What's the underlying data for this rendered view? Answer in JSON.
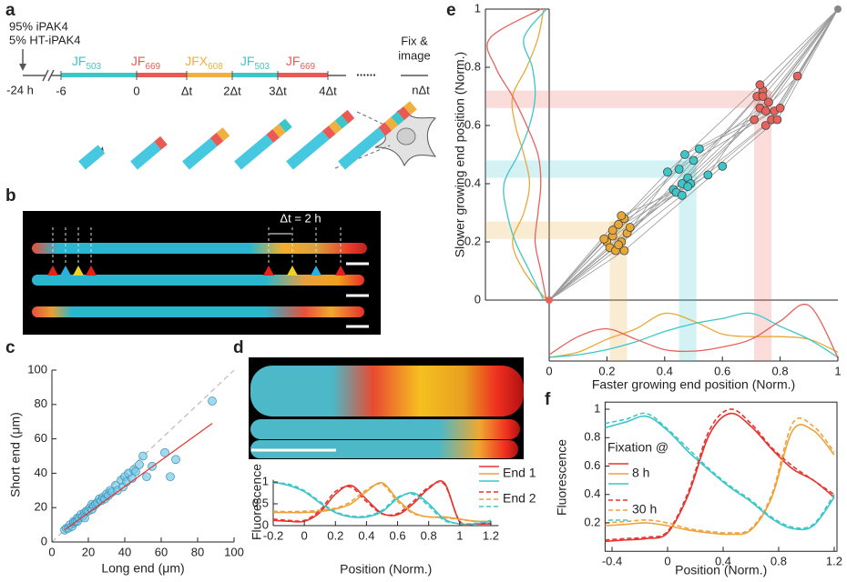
{
  "panel_labels": [
    "a",
    "b",
    "c",
    "d",
    "e",
    "f"
  ],
  "timeline": {
    "conditions": [
      "95% iPAK4",
      "5% HT-iPAK4"
    ],
    "start": "-24 h",
    "dyes": [
      {
        "name": "JF",
        "sub": "503"
      },
      {
        "name": "JF",
        "sub": "669"
      },
      {
        "name": "JFX",
        "sub": "608"
      },
      {
        "name": "JF",
        "sub": "503"
      },
      {
        "name": "JF",
        "sub": "669"
      }
    ],
    "times": [
      "-6",
      "0",
      "Δt",
      "2Δt",
      "3Δt",
      "4Δt"
    ],
    "ellipsis": "......",
    "end_time": "nΔt",
    "end_label": [
      "Fix &",
      "image"
    ]
  },
  "image_b": {
    "annotation": "Δt = 2 h"
  },
  "chart_data": [
    {
      "type": "scatter",
      "x_label": "Long end (μm)",
      "y_label": "Short end (μm)",
      "xlim": [
        0,
        100
      ],
      "ylim": [
        0,
        100
      ],
      "xticks": [
        0,
        20,
        40,
        60,
        80,
        100
      ],
      "yticks": [
        0,
        20,
        40,
        60,
        80,
        100
      ],
      "color": "#6ec6e8",
      "x": [
        7,
        8,
        9,
        10,
        11,
        12,
        12,
        13,
        14,
        14,
        15,
        16,
        17,
        18,
        18,
        19,
        20,
        21,
        22,
        22,
        23,
        24,
        25,
        26,
        27,
        28,
        29,
        30,
        31,
        32,
        33,
        35,
        36,
        38,
        39,
        40,
        41,
        42,
        44,
        45,
        46,
        48,
        50,
        52,
        55,
        62,
        65,
        68,
        88
      ],
      "values": [
        7,
        8,
        8,
        10,
        9,
        11,
        12,
        12,
        14,
        12,
        14,
        16,
        15,
        17,
        14,
        18,
        18,
        20,
        19,
        22,
        21,
        22,
        23,
        25,
        24,
        26,
        25,
        28,
        27,
        30,
        29,
        33,
        30,
        36,
        32,
        38,
        35,
        40,
        37,
        42,
        41,
        45,
        50,
        38,
        44,
        52,
        38,
        48,
        82
      ],
      "fit_line": {
        "color": "#e8332e",
        "x": [
          7,
          88
        ],
        "y": [
          7,
          69
        ]
      },
      "identity_line": {
        "color": "#bbbbbb",
        "x": [
          0,
          100
        ],
        "y": [
          0,
          100
        ]
      }
    },
    {
      "type": "line",
      "x_label": "Position (Norm.)",
      "y_label": "Fluorescence",
      "xlim": [
        -0.2,
        1.25
      ],
      "ylim": [
        0,
        1.05
      ],
      "xticks": [
        -0.2,
        0,
        0.2,
        0.4,
        0.6,
        0.8,
        1,
        1.2
      ],
      "yticks": [
        0,
        0.5,
        1
      ],
      "legend": "upper right",
      "x": [
        -0.2,
        -0.1,
        0,
        0.1,
        0.2,
        0.3,
        0.4,
        0.5,
        0.6,
        0.7,
        0.8,
        0.9,
        1,
        1.1,
        1.2
      ],
      "groups": [
        {
          "name": "End 1",
          "dashed": false,
          "series": [
            {
              "color": "#e8332e",
              "values": [
                0.12,
                0.1,
                0.1,
                0.3,
                0.72,
                0.92,
                0.6,
                0.28,
                0.25,
                0.5,
                0.85,
                0.98,
                0.08,
                0.04,
                0.04
              ]
            },
            {
              "color": "#eea23a",
              "values": [
                0.3,
                0.3,
                0.3,
                0.32,
                0.38,
                0.5,
                0.78,
                0.98,
                0.6,
                0.3,
                0.2,
                0.2,
                0.15,
                0.1,
                0.1
              ]
            },
            {
              "color": "#3cc6c8",
              "values": [
                1,
                0.92,
                0.78,
                0.52,
                0.3,
                0.2,
                0.2,
                0.32,
                0.62,
                0.75,
                0.5,
                0.15,
                0.04,
                0.04,
                0.1
              ]
            }
          ]
        },
        {
          "name": "End 2",
          "dashed": true,
          "series": [
            {
              "color": "#e8332e",
              "values": [
                0.15,
                0.12,
                0.12,
                0.35,
                0.78,
                0.88,
                0.55,
                0.27,
                0.28,
                0.55,
                0.88,
                0.95,
                0.1,
                0.05,
                0.05
              ]
            },
            {
              "color": "#eea23a",
              "values": [
                0.33,
                0.32,
                0.33,
                0.35,
                0.4,
                0.55,
                0.82,
                0.95,
                0.55,
                0.28,
                0.2,
                0.18,
                0.14,
                0.1,
                0.1
              ]
            },
            {
              "color": "#3cc6c8",
              "values": [
                0.98,
                0.95,
                0.8,
                0.55,
                0.32,
                0.22,
                0.22,
                0.35,
                0.65,
                0.72,
                0.45,
                0.12,
                0.05,
                0.05,
                0.12
              ]
            }
          ]
        }
      ]
    },
    {
      "type": "scatter",
      "x_label": "Faster growing end position (Norm.)",
      "y_label": "Slower growing end position (Norm.)",
      "xlim": [
        0,
        1
      ],
      "ylim": [
        0,
        1
      ],
      "xticks": [
        0,
        0.2,
        0.4,
        0.6,
        0.8,
        1
      ],
      "yticks": [
        0,
        0.2,
        0.4,
        0.6,
        0.8,
        1
      ],
      "line_color": "#999999",
      "marginal_positions": [
        0,
        0.1,
        0.2,
        0.3,
        0.4,
        0.5,
        0.6,
        0.7,
        0.8,
        0.9,
        1
      ],
      "series": [
        {
          "color": "#e8a838",
          "x": [
            0.2,
            0.22,
            0.24,
            0.25,
            0.27,
            0.21,
            0.23,
            0.26,
            0.28,
            0.19,
            0.24,
            0.22,
            0.26,
            0.25
          ],
          "values": [
            0.2,
            0.22,
            0.26,
            0.2,
            0.23,
            0.18,
            0.17,
            0.28,
            0.25,
            0.21,
            0.19,
            0.24,
            0.17,
            0.29
          ],
          "band_x": [
            0.21,
            0.27
          ],
          "band_y": [
            0.21,
            0.27
          ],
          "x_density": [
            0,
            0.1,
            0.35,
            0.55,
            0.85,
            0.7,
            0.45,
            0.4,
            0.4,
            0.35,
            0.1
          ],
          "y_density": [
            0,
            0.4,
            0.6,
            0.4,
            0.3,
            0.4,
            0.55,
            0.6,
            0.35,
            0.15,
            0.05
          ]
        },
        {
          "color": "#3cc6c8",
          "x": [
            0.43,
            0.45,
            0.46,
            0.47,
            0.48,
            0.44,
            0.5,
            0.52,
            0.49,
            0.41,
            0.46,
            0.55,
            0.6,
            0.48
          ],
          "values": [
            0.38,
            0.45,
            0.4,
            0.5,
            0.42,
            0.37,
            0.48,
            0.52,
            0.4,
            0.44,
            0.36,
            0.43,
            0.46,
            0.39
          ],
          "band_x": [
            0.45,
            0.51
          ],
          "band_y": [
            0.42,
            0.48
          ],
          "x_density": [
            0,
            0.05,
            0.15,
            0.3,
            0.5,
            0.65,
            0.75,
            0.85,
            0.6,
            0.35,
            0
          ],
          "y_density": [
            0.05,
            0.3,
            0.55,
            0.7,
            0.75,
            0.5,
            0.3,
            0.2,
            0.25,
            0.4,
            0
          ]
        },
        {
          "color": "#e8625c",
          "x": [
            0.72,
            0.73,
            0.74,
            0.75,
            0.76,
            0.71,
            0.78,
            0.8,
            0.77,
            0.73,
            0.75,
            0.74,
            0.79,
            0.86
          ],
          "values": [
            0.7,
            0.66,
            0.72,
            0.65,
            0.68,
            0.62,
            0.65,
            0.66,
            0.62,
            0.74,
            0.6,
            0.7,
            0.62,
            0.77
          ],
          "band_x": [
            0.71,
            0.77
          ],
          "band_y": [
            0.66,
            0.72
          ],
          "x_density": [
            0.05,
            0.4,
            0.55,
            0.35,
            0.15,
            0.12,
            0.2,
            0.35,
            0.7,
            1,
            0
          ],
          "y_density": [
            0,
            0.1,
            0.2,
            0.15,
            0.1,
            0.15,
            0.35,
            0.6,
            0.9,
            1,
            0.1
          ]
        }
      ]
    },
    {
      "type": "line",
      "x_label": "Position (Norm.)",
      "y_label": "Fluorescence",
      "xlim": [
        -0.45,
        1.22
      ],
      "ylim": [
        0,
        1.05
      ],
      "xticks": [
        -0.4,
        0,
        0.4,
        0.8,
        1.2
      ],
      "yticks": [
        0.2,
        0.4,
        0.6,
        0.8,
        1
      ],
      "legend": "upper left",
      "legend_title": "Fixation @",
      "x": [
        -0.45,
        -0.3,
        -0.15,
        0,
        0.15,
        0.3,
        0.45,
        0.6,
        0.75,
        0.9,
        1.05,
        1.2
      ],
      "groups": [
        {
          "name": "8 h",
          "dashed": false,
          "series": [
            {
              "color": "#e8332e",
              "values": [
                0.07,
                0.08,
                0.09,
                0.13,
                0.4,
                0.82,
                0.97,
                0.88,
                0.72,
                0.58,
                0.5,
                0.38
              ]
            },
            {
              "color": "#eea23a",
              "values": [
                0.18,
                0.19,
                0.2,
                0.18,
                0.15,
                0.13,
                0.12,
                0.15,
                0.38,
                0.85,
                0.85,
                0.68
              ]
            },
            {
              "color": "#3cc6c8",
              "values": [
                0.87,
                0.91,
                0.95,
                0.85,
                0.7,
                0.57,
                0.45,
                0.35,
                0.23,
                0.16,
                0.18,
                0.38
              ]
            }
          ]
        },
        {
          "name": "30 h",
          "dashed": true,
          "series": [
            {
              "color": "#e8332e",
              "values": [
                0.08,
                0.09,
                0.1,
                0.14,
                0.42,
                0.85,
                1,
                0.9,
                0.73,
                0.6,
                0.5,
                0.4
              ]
            },
            {
              "color": "#eea23a",
              "values": [
                0.2,
                0.21,
                0.22,
                0.2,
                0.16,
                0.14,
                0.13,
                0.16,
                0.4,
                0.9,
                0.88,
                0.7
              ]
            },
            {
              "color": "#3cc6c8",
              "values": [
                0.9,
                0.93,
                0.97,
                0.86,
                0.72,
                0.58,
                0.46,
                0.36,
                0.24,
                0.17,
                0.19,
                0.4
              ]
            }
          ]
        }
      ]
    }
  ]
}
